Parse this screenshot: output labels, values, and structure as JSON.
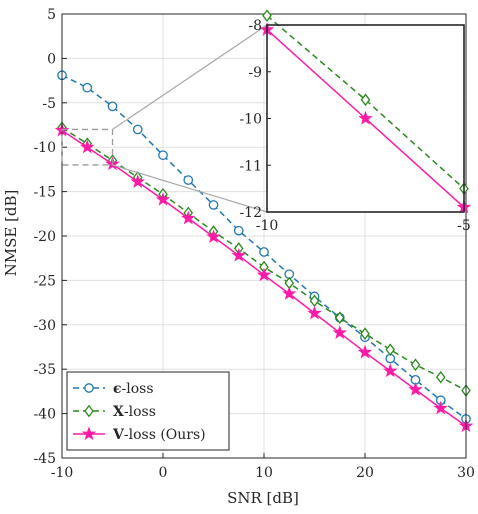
{
  "chart_data": {
    "type": "line",
    "xlabel": "SNR [dB]",
    "ylabel": "NMSE [dB]",
    "xlim": [
      -10,
      30
    ],
    "ylim": [
      -45,
      5
    ],
    "xticks": [
      -10,
      0,
      10,
      20,
      30
    ],
    "yticks": [
      5,
      0,
      -5,
      -10,
      -15,
      -20,
      -25,
      -30,
      -35,
      -40,
      -45
    ],
    "grid": true,
    "legend_position": "bottom-left",
    "series": [
      {
        "name_symbol": "ϵ",
        "name_suffix": "-loss",
        "color": "#1f77b4",
        "line_style": "dashed",
        "marker": "circle",
        "x": [
          -10,
          -7.5,
          -5,
          -2.5,
          0,
          2.5,
          5,
          7.5,
          10,
          12.5,
          15,
          17.5,
          20,
          22.5,
          25,
          27.5,
          30
        ],
        "y": [
          -1.9,
          -3.3,
          -5.4,
          -8.0,
          -10.9,
          -13.7,
          -16.5,
          -19.4,
          -21.8,
          -24.3,
          -26.8,
          -29.2,
          -31.4,
          -33.8,
          -36.2,
          -38.5,
          -40.6
        ]
      },
      {
        "name_symbol": "X",
        "name_suffix": "-loss",
        "color": "#2a8a1e",
        "line_style": "dashed",
        "marker": "diamond",
        "x": [
          -10,
          -7.5,
          -5,
          -2.5,
          0,
          2.5,
          5,
          7.5,
          10,
          12.5,
          15,
          17.5,
          20,
          22.5,
          25,
          27.5,
          30
        ],
        "y": [
          -7.8,
          -9.6,
          -11.5,
          -13.4,
          -15.3,
          -17.4,
          -19.5,
          -21.4,
          -23.5,
          -25.3,
          -27.3,
          -29.2,
          -31.0,
          -32.8,
          -34.5,
          -35.9,
          -37.4
        ]
      },
      {
        "name_symbol": "V",
        "name_suffix": "-loss (Ours)",
        "color": "#ff1aa8",
        "line_style": "solid",
        "marker": "star",
        "x": [
          -10,
          -7.5,
          -5,
          -2.5,
          0,
          2.5,
          5,
          7.5,
          10,
          12.5,
          15,
          17.5,
          20,
          22.5,
          25,
          27.5,
          30
        ],
        "y": [
          -8.1,
          -10.0,
          -11.9,
          -13.9,
          -15.9,
          -18.0,
          -20.1,
          -22.2,
          -24.4,
          -26.5,
          -28.7,
          -30.9,
          -33.1,
          -35.2,
          -37.3,
          -39.4,
          -41.4
        ]
      }
    ],
    "inset": {
      "xlim": [
        -10,
        -5
      ],
      "ylim": [
        -12,
        -8
      ],
      "xticks": [
        -10,
        -5
      ],
      "yticks": [
        -8,
        -9,
        -10,
        -11,
        -12
      ],
      "grid": false,
      "zoom_region": {
        "x": [
          -10,
          -5
        ],
        "y": [
          -12,
          -8
        ]
      }
    }
  }
}
